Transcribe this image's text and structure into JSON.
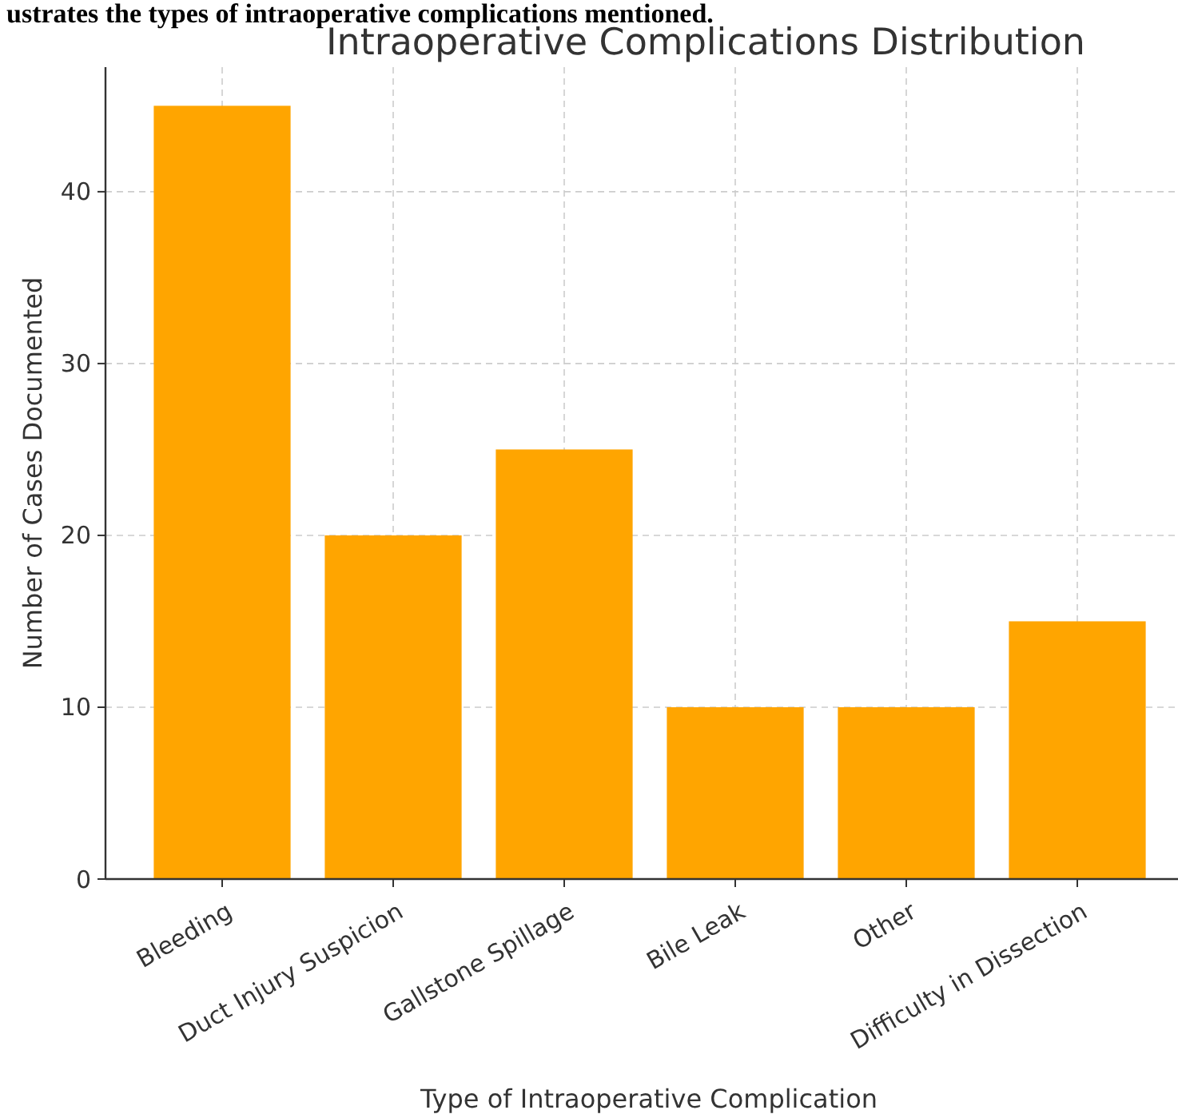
{
  "chart_data": {
    "type": "bar",
    "title": "Intraoperative Complications Distribution",
    "xlabel": "Type of Intraoperative Complication",
    "ylabel": "Number of Cases Documented",
    "annotations": [
      "ustrates the types of intraoperative complications mentioned."
    ],
    "categories": [
      "Bleeding",
      "Duct Injury Suspicion",
      "Gallstone Spillage",
      "Bile Leak",
      "Other",
      "Difficulty in Dissection"
    ],
    "values": [
      45,
      20,
      25,
      10,
      10,
      15
    ],
    "color": "#ffa500",
    "ylim": [
      0,
      47.25
    ],
    "yticks": [
      0,
      10,
      20,
      30,
      40
    ],
    "grid": true
  }
}
